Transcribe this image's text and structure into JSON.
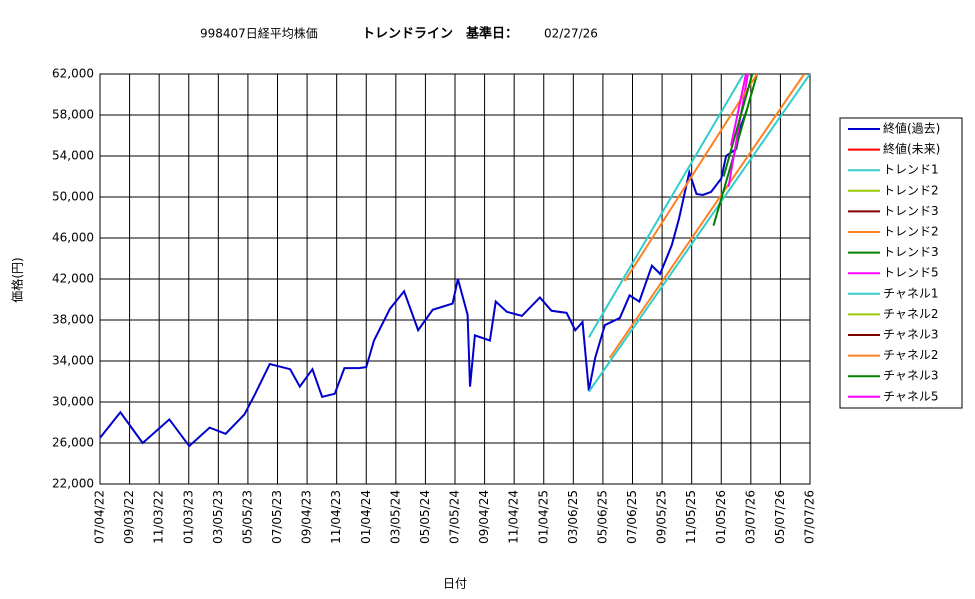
{
  "chart_data": {
    "type": "line",
    "title": "998407日経平均株価",
    "subtitle": "トレンドライン　基準日：",
    "base_date": "02/27/26",
    "x_label": "日付",
    "y_label": "価格(円)",
    "xlim": [
      "07/04/22",
      "07/07/26"
    ],
    "xticks": [
      "07/04/22",
      "09/03/22",
      "11/03/22",
      "01/03/23",
      "03/05/23",
      "05/05/23",
      "07/05/23",
      "09/04/23",
      "11/04/23",
      "01/04/24",
      "03/05/24",
      "05/05/24",
      "07/05/24",
      "09/04/24",
      "11/04/24",
      "01/04/25",
      "03/06/25",
      "05/06/25",
      "07/06/25",
      "09/05/25",
      "11/05/25",
      "01/05/26",
      "03/07/26",
      "05/07/26",
      "07/07/26"
    ],
    "ylim": [
      22000,
      62000
    ],
    "yticks": [
      {
        "value": 22000,
        "label": "22,000"
      },
      {
        "value": 26000,
        "label": "26,000"
      },
      {
        "value": 30000,
        "label": "30,000"
      },
      {
        "value": 34000,
        "label": "34,000"
      },
      {
        "value": 38000,
        "label": "38,000"
      },
      {
        "value": 42000,
        "label": "42,000"
      },
      {
        "value": 46000,
        "label": "46,000"
      },
      {
        "value": 50000,
        "label": "50,000"
      },
      {
        "value": 54000,
        "label": "54,000"
      },
      {
        "value": 58000,
        "label": "58,000"
      },
      {
        "value": 62000,
        "label": "62,000"
      }
    ],
    "grid": true,
    "legend": "right",
    "series": [
      {
        "name": "終値(過去)",
        "color": "#0000cc",
        "x": [
          "07/04/22",
          "08/15/22",
          "09/30/22",
          "11/24/22",
          "01/04/23",
          "02/15/23",
          "03/20/23",
          "04/28/23",
          "05/20/23",
          "06/19/23",
          "07/31/23",
          "08/20/23",
          "09/15/23",
          "10/05/23",
          "10/31/23",
          "11/20/23",
          "12/20/23",
          "01/04/24",
          "01/20/24",
          "02/22/24",
          "03/22/24",
          "04/20/24",
          "05/20/24",
          "06/30/24",
          "07/11/24",
          "07/31/24",
          "08/05/24",
          "08/15/24",
          "09/15/24",
          "09/27/24",
          "10/20/24",
          "11/20/24",
          "12/27/24",
          "01/20/25",
          "02/20/25",
          "03/10/25",
          "03/25/25",
          "04/07/25",
          "04/20/25",
          "05/10/25",
          "06/10/25",
          "06/30/25",
          "07/20/25",
          "08/15/25",
          "09/01/25",
          "09/25/25",
          "10/10/25",
          "10/31/25",
          "11/15/25",
          "11/28/25",
          "12/15/25",
          "01/05/26",
          "01/15/26",
          "02/05/26",
          "02/15/26",
          "02/27/26"
        ],
        "values": [
          26500,
          29000,
          26000,
          28300,
          25700,
          27500,
          26900,
          28800,
          30800,
          33700,
          33200,
          31500,
          33200,
          30500,
          30800,
          33300,
          33300,
          33400,
          36000,
          39100,
          40800,
          37000,
          39000,
          39600,
          42000,
          38500,
          31500,
          36500,
          36000,
          39800,
          38800,
          38400,
          40200,
          38900,
          38700,
          37000,
          37800,
          31100,
          34300,
          37500,
          38200,
          40400,
          39800,
          43300,
          42500,
          45300,
          47900,
          52400,
          50300,
          50200,
          50500,
          51800,
          54000,
          54700,
          57000,
          58500
        ]
      },
      {
        "name": "終値(未来)",
        "color": "#ff0000",
        "x": [],
        "values": []
      },
      {
        "name": "トレンド1",
        "color": "#33cccc",
        "x": [
          "04/07/25",
          "07/07/26"
        ],
        "values": [
          31000,
          62000
        ]
      },
      {
        "name": "トレンド2",
        "color": "#99cc00",
        "x": [],
        "values": []
      },
      {
        "name": "トレンド3",
        "color": "#800000",
        "x": [],
        "values": []
      },
      {
        "name": "トレンド2",
        "color": "#ff8020",
        "x": [
          "05/20/25",
          "06/25/26"
        ],
        "values": [
          34300,
          62000
        ]
      },
      {
        "name": "トレンド3",
        "color": "#008000",
        "x": [
          "12/20/25",
          "03/20/26"
        ],
        "values": [
          47200,
          62000
        ]
      },
      {
        "name": "トレンド5",
        "color": "#ff00ff",
        "x": [
          "01/20/26",
          "03/01/26"
        ],
        "values": [
          51000,
          62000
        ]
      },
      {
        "name": "チャネル1",
        "color": "#33cccc",
        "x": [
          "04/07/25",
          "02/20/26"
        ],
        "values": [
          36300,
          62000
        ]
      },
      {
        "name": "チャネル2",
        "color": "#99cc00",
        "x": [],
        "values": []
      },
      {
        "name": "チャネル3",
        "color": "#800000",
        "x": [],
        "values": []
      },
      {
        "name": "チャネル2",
        "color": "#ff8020",
        "x": [
          "06/20/25",
          "03/20/26"
        ],
        "values": [
          41800,
          62000
        ]
      },
      {
        "name": "チャネル3",
        "color": "#008000",
        "x": [
          "01/10/26",
          "03/10/26"
        ],
        "values": [
          52000,
          62000
        ]
      },
      {
        "name": "チャネル5",
        "color": "#ff00ff",
        "x": [
          "01/25/26",
          "02/25/26"
        ],
        "values": [
          55000,
          62000
        ]
      }
    ]
  }
}
